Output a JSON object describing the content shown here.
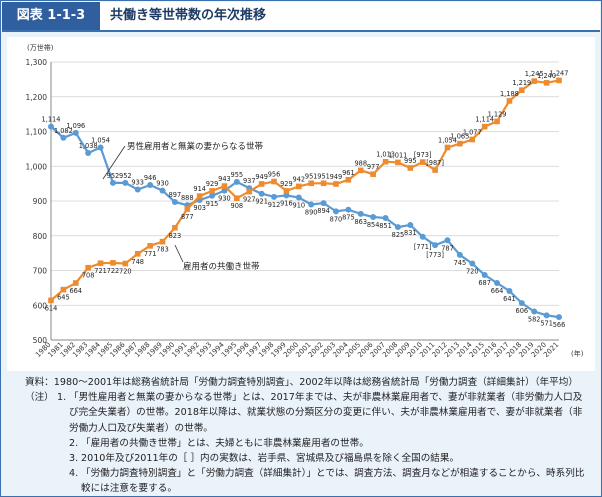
{
  "header": {
    "figure_label": "図表 1-1-3",
    "title": "共働き等世帯数の年次推移"
  },
  "chart_data": {
    "type": "line",
    "title": "共働き等世帯数の年次推移",
    "unit_label": "(万世帯)",
    "x_unit_label": "(年)",
    "ylim": [
      500,
      1300
    ],
    "yticks": [
      500,
      600,
      700,
      800,
      900,
      1000,
      1100,
      1200,
      1300
    ],
    "grid": true,
    "x": [
      1980,
      1981,
      1982,
      1983,
      1984,
      1985,
      1986,
      1987,
      1988,
      1989,
      1990,
      1991,
      1992,
      1993,
      1994,
      1995,
      1996,
      1997,
      1998,
      1999,
      2000,
      2001,
      2002,
      2003,
      2004,
      2005,
      2006,
      2007,
      2008,
      2009,
      2010,
      2011,
      2012,
      2013,
      2014,
      2015,
      2016,
      2017,
      2018,
      2019,
      2020,
      2021
    ],
    "xlabels": [
      "1980",
      "1981",
      "1982",
      "1983",
      "1984",
      "1985",
      "1986",
      "1987",
      "1988",
      "1989",
      "1990",
      "1991",
      "1992",
      "1993",
      "1994",
      "1995",
      "1996",
      "1997",
      "1998",
      "1999",
      "2000",
      "2001",
      "2002",
      "2003",
      "2004",
      "2005",
      "2006",
      "2007",
      "2008",
      "2009",
      "2010",
      "2011",
      "2012",
      "2013",
      "2014",
      "2015",
      "2016",
      "2017",
      "2018",
      "2019",
      "2020",
      "2021"
    ],
    "series": [
      {
        "name": "男性雇用者と無業の妻からなる世帯",
        "color": "#5b9bd5",
        "marker": "circle",
        "values": [
          1114,
          1082,
          1096,
          1038,
          1054,
          952,
          952,
          933,
          946,
          930,
          897,
          888,
          903,
          915,
          930,
          955,
          937,
          921,
          912,
          916,
          910,
          890,
          894,
          870,
          875,
          863,
          854,
          851,
          825,
          831,
          797,
          773,
          787,
          745,
          720,
          687,
          664,
          641,
          606,
          582,
          571,
          566
        ],
        "bracketed": [
          null,
          null,
          null,
          null,
          null,
          null,
          null,
          null,
          null,
          null,
          null,
          null,
          null,
          null,
          null,
          null,
          null,
          null,
          null,
          null,
          null,
          null,
          null,
          null,
          null,
          null,
          null,
          null,
          null,
          null,
          771,
          773,
          null,
          null,
          null,
          null,
          null,
          null,
          null,
          null,
          null,
          null
        ]
      },
      {
        "name": "雇用者の共働き世帯",
        "color": "#ed8b2e",
        "marker": "square",
        "values": [
          614,
          645,
          664,
          708,
          721,
          722,
          720,
          748,
          771,
          783,
          823,
          877,
          914,
          929,
          943,
          908,
          927,
          949,
          956,
          929,
          942,
          951,
          951,
          949,
          961,
          988,
          977,
          1013,
          1011,
          995,
          1012,
          989,
          1054,
          1065,
          1077,
          1114,
          1129,
          1188,
          1219,
          1245,
          1240,
          1247
        ],
        "bracketed": [
          null,
          null,
          null,
          null,
          null,
          null,
          null,
          null,
          null,
          null,
          null,
          null,
          null,
          null,
          null,
          null,
          null,
          null,
          null,
          null,
          null,
          null,
          null,
          null,
          null,
          null,
          null,
          null,
          null,
          null,
          973,
          987,
          null,
          null,
          null,
          null,
          null,
          null,
          null,
          null,
          null,
          null
        ]
      }
    ],
    "annotations": [
      {
        "text": "男性雇用者と無業の妻からなる世帯"
      },
      {
        "text": "雇用者の共働き世帯"
      }
    ]
  },
  "notes": {
    "source_label": "資料：",
    "source_text": "1980～2001年は総務省統計局「労働力調査特別調査」、2002年以降は総務省統計局「労働力調査（詳細集計）（年平均）",
    "note_label": "（注）",
    "items": [
      {
        "num": "1.",
        "text": "「男性雇用者と無業の妻からなる世帯」とは、2017年までは、夫が非農林業雇用者で、妻が非就業者（非労働力人口及び完全失業者）の世帯。2018年以降は、就業状態の分類区分の変更に伴い、夫が非農林業雇用者で、妻が非就業者（非労働力人口及び失業者）の世帯。"
      },
      {
        "num": "2.",
        "text": "「雇用者の共働き世帯」とは、夫婦ともに非農林業雇用者の世帯。"
      },
      {
        "num": "3.",
        "text": "2010年及び2011年の［ ］内の実数は、岩手県、宮城県及び福島県を除く全国の結果。"
      },
      {
        "num": "4.",
        "text": "「労働力調査特別調査」と「労働力調査（詳細集計）」とでは、調査方法、調査月などが相違することから、時系列比較には注意を要する。"
      }
    ]
  }
}
